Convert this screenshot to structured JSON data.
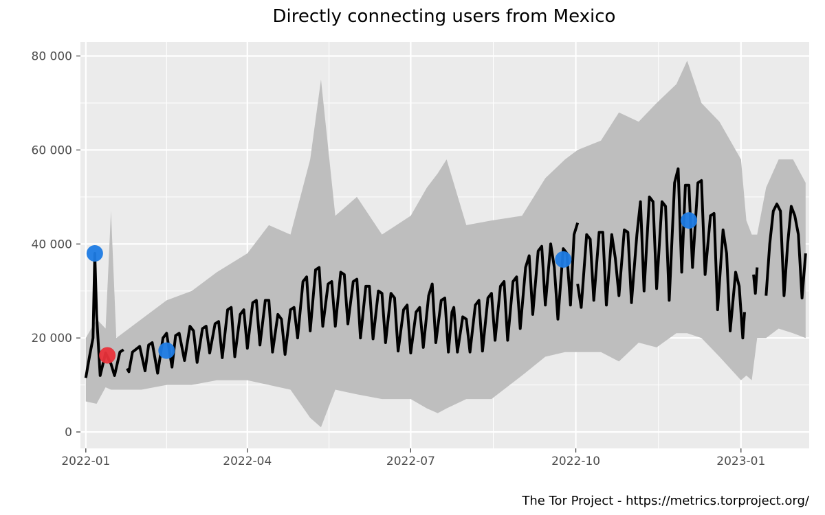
{
  "chart_data": {
    "type": "line",
    "title": "Directly connecting users from Mexico",
    "caption": "The Tor Project - https://metrics.torproject.org/",
    "xlabel": "",
    "ylabel": "",
    "x_range": [
      "2021-12-29",
      "2023-02-08"
    ],
    "ylim": [
      -3500,
      83000
    ],
    "y_ticks": [
      0,
      20000,
      40000,
      60000,
      80000
    ],
    "y_tick_labels": [
      "0",
      "20 000",
      "40 000",
      "60 000",
      "80 000"
    ],
    "x_ticks": [
      "2022-01-01",
      "2022-04-01",
      "2022-07-01",
      "2022-10-01",
      "2023-01-01"
    ],
    "x_tick_labels": [
      "2022-01",
      "2022-04",
      "2022-07",
      "2022-10",
      "2023-01"
    ],
    "grid": true,
    "legend": "none",
    "colors": {
      "panel": "#ebebeb",
      "grid": "#ffffff",
      "range": "#bebebe",
      "line": "#000000",
      "event_blue": "#1e7be4",
      "event_red": "#e8323a"
    },
    "series": [
      {
        "points": [
          [
            "2022-01-01",
            11500
          ],
          [
            "2022-01-03",
            16000
          ],
          [
            "2022-01-05",
            20000
          ],
          [
            "2022-01-06",
            38000
          ],
          [
            "2022-01-07",
            25000
          ],
          [
            "2022-01-09",
            12000
          ],
          [
            "2022-01-12",
            16800
          ],
          [
            "2022-01-15",
            14500
          ],
          [
            "2022-01-17",
            12000
          ],
          [
            "2022-01-20",
            17000
          ],
          [
            "2022-01-22",
            17500
          ],
          [
            null,
            null
          ],
          [
            "2022-01-24",
            13500
          ],
          [
            "2022-01-25",
            12800
          ],
          [
            "2022-01-27",
            17000
          ],
          [
            "2022-01-31",
            18200
          ],
          [
            "2022-02-03",
            13000
          ],
          [
            "2022-02-05",
            18500
          ],
          [
            "2022-02-07",
            19000
          ],
          [
            "2022-02-10",
            12500
          ],
          [
            "2022-02-13",
            20000
          ],
          [
            "2022-02-15",
            21000
          ],
          [
            "2022-02-18",
            13800
          ],
          [
            "2022-02-20",
            20500
          ],
          [
            "2022-02-22",
            21000
          ],
          [
            "2022-02-25",
            15200
          ],
          [
            "2022-02-28",
            22500
          ],
          [
            "2022-03-02",
            21500
          ],
          [
            "2022-03-04",
            14800
          ],
          [
            "2022-03-07",
            22000
          ],
          [
            "2022-03-09",
            22500
          ],
          [
            "2022-03-11",
            16800
          ],
          [
            "2022-03-14",
            23000
          ],
          [
            "2022-03-16",
            23500
          ],
          [
            "2022-03-18",
            15800
          ],
          [
            "2022-03-21",
            26000
          ],
          [
            "2022-03-23",
            26500
          ],
          [
            "2022-03-25",
            16000
          ],
          [
            "2022-03-28",
            25000
          ],
          [
            "2022-03-30",
            26000
          ],
          [
            "2022-04-01",
            17800
          ],
          [
            "2022-04-04",
            27500
          ],
          [
            "2022-04-06",
            28000
          ],
          [
            "2022-04-08",
            18500
          ],
          [
            "2022-04-11",
            28000
          ],
          [
            "2022-04-13",
            28000
          ],
          [
            "2022-04-15",
            17000
          ],
          [
            "2022-04-18",
            25000
          ],
          [
            "2022-04-20",
            24000
          ],
          [
            "2022-04-22",
            16500
          ],
          [
            "2022-04-25",
            26000
          ],
          [
            "2022-04-27",
            26500
          ],
          [
            "2022-04-29",
            20000
          ],
          [
            "2022-05-02",
            32000
          ],
          [
            "2022-05-04",
            33000
          ],
          [
            "2022-05-06",
            21500
          ],
          [
            "2022-05-09",
            34500
          ],
          [
            "2022-05-11",
            35000
          ],
          [
            "2022-05-13",
            22500
          ],
          [
            "2022-05-16",
            31500
          ],
          [
            "2022-05-18",
            32000
          ],
          [
            "2022-05-20",
            22500
          ],
          [
            "2022-05-23",
            34000
          ],
          [
            "2022-05-25",
            33500
          ],
          [
            "2022-05-27",
            23000
          ],
          [
            "2022-05-30",
            32000
          ],
          [
            "2022-06-01",
            32500
          ],
          [
            "2022-06-03",
            20000
          ],
          [
            "2022-06-06",
            31000
          ],
          [
            "2022-06-08",
            31000
          ],
          [
            "2022-06-10",
            19800
          ],
          [
            "2022-06-13",
            30000
          ],
          [
            "2022-06-15",
            29500
          ],
          [
            "2022-06-17",
            19000
          ],
          [
            "2022-06-20",
            29500
          ],
          [
            "2022-06-22",
            28500
          ],
          [
            "2022-06-24",
            17200
          ],
          [
            "2022-06-27",
            26000
          ],
          [
            "2022-06-29",
            27000
          ],
          [
            "2022-07-01",
            16800
          ],
          [
            "2022-07-04",
            25500
          ],
          [
            "2022-07-06",
            26500
          ],
          [
            "2022-07-08",
            18000
          ],
          [
            "2022-07-11",
            29000
          ],
          [
            "2022-07-13",
            31500
          ],
          [
            "2022-07-15",
            19000
          ],
          [
            "2022-07-18",
            28000
          ],
          [
            "2022-07-20",
            28500
          ],
          [
            "2022-07-22",
            17000
          ],
          [
            "2022-07-24",
            25500
          ],
          [
            "2022-07-25",
            26500
          ],
          [
            "2022-07-27",
            17000
          ],
          [
            "2022-07-30",
            24500
          ],
          [
            "2022-08-01",
            24000
          ],
          [
            "2022-08-03",
            17000
          ],
          [
            "2022-08-06",
            27000
          ],
          [
            "2022-08-08",
            28000
          ],
          [
            "2022-08-10",
            17200
          ],
          [
            "2022-08-13",
            28500
          ],
          [
            "2022-08-15",
            29500
          ],
          [
            "2022-08-17",
            19500
          ],
          [
            "2022-08-20",
            31000
          ],
          [
            "2022-08-22",
            32000
          ],
          [
            "2022-08-24",
            19500
          ],
          [
            "2022-08-27",
            32000
          ],
          [
            "2022-08-29",
            33000
          ],
          [
            "2022-08-31",
            22000
          ],
          [
            "2022-09-03",
            35000
          ],
          [
            "2022-09-05",
            37500
          ],
          [
            "2022-09-07",
            25000
          ],
          [
            "2022-09-10",
            38500
          ],
          [
            "2022-09-12",
            39500
          ],
          [
            "2022-09-14",
            27000
          ],
          [
            "2022-09-17",
            40000
          ],
          [
            "2022-09-19",
            35000
          ],
          [
            "2022-09-21",
            24000
          ],
          [
            "2022-09-24",
            39000
          ],
          [
            "2022-09-26",
            38000
          ],
          [
            "2022-09-28",
            27000
          ],
          [
            "2022-09-30",
            42000
          ],
          [
            "2022-10-02",
            44500
          ],
          [
            null,
            null
          ],
          [
            "2022-10-02",
            31500
          ],
          [
            "2022-10-04",
            26500
          ],
          [
            "2022-10-07",
            42000
          ],
          [
            "2022-10-09",
            41000
          ],
          [
            "2022-10-11",
            28000
          ],
          [
            "2022-10-14",
            42500
          ],
          [
            "2022-10-16",
            42500
          ],
          [
            "2022-10-18",
            27000
          ],
          [
            "2022-10-21",
            42000
          ],
          [
            "2022-10-23",
            37000
          ],
          [
            "2022-10-25",
            29000
          ],
          [
            "2022-10-28",
            43000
          ],
          [
            "2022-10-30",
            42500
          ],
          [
            "2022-11-01",
            27500
          ],
          [
            "2022-11-04",
            42000
          ],
          [
            "2022-11-06",
            49000
          ],
          [
            "2022-11-08",
            30000
          ],
          [
            "2022-11-11",
            50000
          ],
          [
            "2022-11-13",
            49000
          ],
          [
            "2022-11-15",
            30500
          ],
          [
            "2022-11-18",
            49000
          ],
          [
            "2022-11-20",
            48000
          ],
          [
            "2022-11-22",
            28000
          ],
          [
            "2022-11-25",
            53000
          ],
          [
            "2022-11-27",
            56000
          ],
          [
            "2022-11-29",
            34000
          ],
          [
            "2022-12-01",
            52500
          ],
          [
            "2022-12-03",
            52500
          ],
          [
            "2022-12-05",
            35000
          ],
          [
            "2022-12-08",
            53000
          ],
          [
            "2022-12-10",
            53500
          ],
          [
            "2022-12-12",
            33500
          ],
          [
            "2022-12-15",
            46000
          ],
          [
            "2022-12-17",
            46500
          ],
          [
            "2022-12-19",
            26000
          ],
          [
            "2022-12-22",
            43000
          ],
          [
            "2022-12-24",
            38000
          ],
          [
            "2022-12-26",
            21500
          ],
          [
            "2022-12-29",
            34000
          ],
          [
            "2022-12-31",
            31000
          ],
          [
            "2023-01-02",
            20000
          ],
          [
            "2023-01-03",
            25500
          ],
          [
            null,
            null
          ],
          [
            "2023-01-08",
            33500
          ],
          [
            "2023-01-09",
            29500
          ],
          [
            "2023-01-10",
            35000
          ],
          [
            null,
            null
          ],
          [
            "2023-01-15",
            29000
          ],
          [
            "2023-01-17",
            40000
          ],
          [
            "2023-01-19",
            47000
          ],
          [
            "2023-01-21",
            48500
          ],
          [
            "2023-01-23",
            47000
          ],
          [
            "2023-01-25",
            29000
          ],
          [
            "2023-01-27",
            40000
          ],
          [
            "2023-01-29",
            48000
          ],
          [
            "2023-01-31",
            46000
          ],
          [
            "2023-02-02",
            42000
          ],
          [
            "2023-02-04",
            28500
          ],
          [
            "2023-02-06",
            38000
          ]
        ]
      }
    ],
    "range_band": [
      [
        "2022-01-01",
        6500,
        20000
      ],
      [
        "2022-01-07",
        6000,
        24000
      ],
      [
        "2022-01-12",
        9500,
        22000
      ],
      [
        "2022-01-15",
        9000,
        47000
      ],
      [
        "2022-01-18",
        9000,
        20000
      ],
      [
        "2022-02-01",
        9000,
        24000
      ],
      [
        "2022-02-15",
        10000,
        28000
      ],
      [
        "2022-03-01",
        10000,
        30000
      ],
      [
        "2022-03-15",
        11000,
        34000
      ],
      [
        "2022-04-01",
        11000,
        38000
      ],
      [
        "2022-04-13",
        10000,
        44000
      ],
      [
        "2022-04-25",
        9000,
        42000
      ],
      [
        "2022-05-06",
        3000,
        58000
      ],
      [
        "2022-05-12",
        1000,
        75000
      ],
      [
        "2022-05-20",
        9000,
        46000
      ],
      [
        "2022-06-01",
        8000,
        50000
      ],
      [
        "2022-06-15",
        7000,
        42000
      ],
      [
        "2022-07-01",
        7000,
        46000
      ],
      [
        "2022-07-10",
        5000,
        52000
      ],
      [
        "2022-07-16",
        4000,
        55000
      ],
      [
        "2022-07-21",
        5000,
        58000
      ],
      [
        "2022-08-01",
        7000,
        44000
      ],
      [
        "2022-08-15",
        7000,
        45000
      ],
      [
        "2022-09-01",
        12000,
        46000
      ],
      [
        "2022-09-14",
        16000,
        54000
      ],
      [
        "2022-09-25",
        17000,
        58000
      ],
      [
        "2022-10-02",
        17000,
        60000
      ],
      [
        "2022-10-15",
        17000,
        62000
      ],
      [
        "2022-10-25",
        15000,
        68000
      ],
      [
        "2022-11-05",
        19000,
        66000
      ],
      [
        "2022-11-15",
        18000,
        70000
      ],
      [
        "2022-11-26",
        21000,
        74000
      ],
      [
        "2022-12-02",
        21000,
        79000
      ],
      [
        "2022-12-10",
        20000,
        70000
      ],
      [
        "2022-12-20",
        16000,
        66000
      ],
      [
        "2023-01-01",
        11000,
        58000
      ],
      [
        "2023-01-04",
        12000,
        45000
      ],
      [
        "2023-01-07",
        11000,
        42000
      ],
      [
        "2023-01-10",
        20000,
        42000
      ],
      [
        "2023-01-15",
        20000,
        52000
      ],
      [
        "2023-01-22",
        22000,
        58000
      ],
      [
        "2023-01-30",
        21000,
        58000
      ],
      [
        "2023-02-06",
        20000,
        53000
      ]
    ],
    "events": [
      {
        "date": "2022-01-06",
        "value": 38000,
        "color": "blue"
      },
      {
        "date": "2022-01-13",
        "value": 16300,
        "color": "red"
      },
      {
        "date": "2022-02-15",
        "value": 17300,
        "color": "blue"
      },
      {
        "date": "2022-09-24",
        "value": 36700,
        "color": "blue"
      },
      {
        "date": "2022-12-03",
        "value": 45000,
        "color": "blue"
      }
    ]
  }
}
